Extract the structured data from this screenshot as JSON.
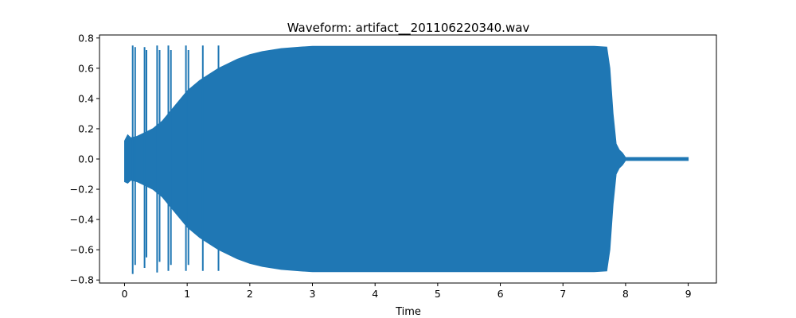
{
  "chart_data": {
    "type": "line",
    "title": "Waveform: artifact__201106220340.wav",
    "xlabel": "Time",
    "ylabel": "",
    "xlim": [
      -0.4,
      9.45
    ],
    "ylim": [
      -0.82,
      0.82
    ],
    "x_ticks": [
      0,
      1,
      2,
      3,
      4,
      5,
      6,
      7,
      8,
      9
    ],
    "x_tick_labels": [
      "0",
      "1",
      "2",
      "3",
      "4",
      "5",
      "6",
      "7",
      "8",
      "9"
    ],
    "y_ticks": [
      0.8,
      0.6,
      0.4,
      0.2,
      0.0,
      -0.2,
      -0.4,
      -0.6,
      -0.8
    ],
    "y_tick_labels": [
      "0.8",
      "0.6",
      "0.4",
      "0.2",
      "0.0",
      "−0.2",
      "−0.4",
      "−0.6",
      "−0.8"
    ],
    "grid": false,
    "series_color": "#1f77b4",
    "envelope": {
      "x": [
        0,
        0.05,
        0.1,
        0.2,
        0.3,
        0.45,
        0.6,
        0.8,
        1.0,
        1.2,
        1.5,
        1.8,
        2.0,
        2.2,
        2.5,
        2.8,
        3.0,
        4.0,
        5.0,
        6.0,
        7.0,
        7.5,
        7.7,
        7.75,
        7.8,
        7.85,
        7.9,
        7.95,
        8.0,
        9.0
      ],
      "upper": [
        0.12,
        0.16,
        0.14,
        0.15,
        0.17,
        0.2,
        0.25,
        0.35,
        0.45,
        0.52,
        0.6,
        0.66,
        0.69,
        0.71,
        0.73,
        0.74,
        0.745,
        0.745,
        0.745,
        0.745,
        0.745,
        0.745,
        0.74,
        0.6,
        0.3,
        0.1,
        0.06,
        0.04,
        0.01,
        0.01
      ],
      "lower": [
        -0.15,
        -0.16,
        -0.14,
        -0.15,
        -0.17,
        -0.2,
        -0.25,
        -0.35,
        -0.45,
        -0.52,
        -0.6,
        -0.66,
        -0.69,
        -0.71,
        -0.73,
        -0.74,
        -0.745,
        -0.745,
        -0.745,
        -0.745,
        -0.745,
        -0.745,
        -0.74,
        -0.6,
        -0.3,
        -0.1,
        -0.06,
        -0.04,
        -0.01,
        -0.01
      ]
    },
    "spikes": [
      {
        "x": 0.13,
        "min": -0.76,
        "max": 0.75
      },
      {
        "x": 0.17,
        "min": -0.7,
        "max": 0.74
      },
      {
        "x": 0.32,
        "min": -0.72,
        "max": 0.74
      },
      {
        "x": 0.35,
        "min": -0.65,
        "max": 0.72
      },
      {
        "x": 0.52,
        "min": -0.75,
        "max": 0.75
      },
      {
        "x": 0.56,
        "min": -0.68,
        "max": 0.72
      },
      {
        "x": 0.7,
        "min": -0.74,
        "max": 0.75
      },
      {
        "x": 0.74,
        "min": -0.7,
        "max": 0.72
      },
      {
        "x": 0.98,
        "min": -0.74,
        "max": 0.75
      },
      {
        "x": 1.02,
        "min": -0.7,
        "max": 0.72
      },
      {
        "x": 1.25,
        "min": -0.74,
        "max": 0.75
      },
      {
        "x": 1.5,
        "min": -0.74,
        "max": 0.75
      }
    ]
  }
}
